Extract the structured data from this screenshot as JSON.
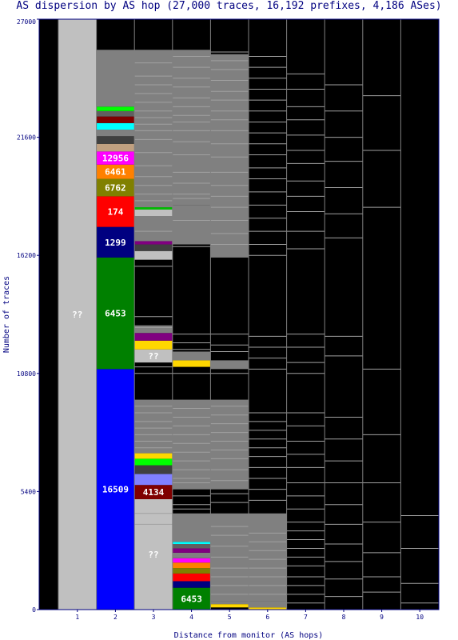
{
  "chart_data": {
    "type": "bar",
    "title": "AS dispersion by AS hop (27,000 traces, 16,192 prefixes, 4,186 ASes)",
    "xlabel": "Distance from monitor (AS hops)",
    "ylabel": "Number of traces",
    "ylim": [
      0,
      27000
    ],
    "yticks": [
      "0",
      "5400",
      "10800",
      "16200",
      "21600",
      "27000"
    ],
    "categories": [
      "1",
      "2",
      "3",
      "4",
      "5",
      "6",
      "7",
      "8",
      "9",
      "10"
    ],
    "colors": {
      "background": "#000000",
      "unknown": "#c0c0c0",
      "minor": "#808080",
      "axis": "#000080"
    },
    "columns": [
      {
        "hop": "1",
        "segments": [
          {
            "from": 0,
            "to": 27000,
            "color": "#c0c0c0",
            "label": "??"
          }
        ]
      },
      {
        "hop": "2",
        "segments": [
          {
            "from": 0,
            "to": 11000,
            "color": "#0000ff",
            "label": "16509"
          },
          {
            "from": 11000,
            "to": 16100,
            "color": "#008000",
            "label": "6453"
          },
          {
            "from": 16100,
            "to": 17500,
            "color": "#000080",
            "label": "1299"
          },
          {
            "from": 17500,
            "to": 18900,
            "color": "#ff0000",
            "label": "174"
          },
          {
            "from": 18900,
            "to": 19700,
            "color": "#808000",
            "label": "6762"
          },
          {
            "from": 19700,
            "to": 20350,
            "color": "#ff8000",
            "label": "6461"
          },
          {
            "from": 20350,
            "to": 20950,
            "color": "#ff00ff",
            "label": "12956"
          },
          {
            "from": 20950,
            "to": 21300,
            "color": "#c0a080",
            "label": ""
          },
          {
            "from": 21300,
            "to": 21650,
            "color": "#404040",
            "label": ""
          },
          {
            "from": 21650,
            "to": 21950,
            "color": "#808080",
            "label": ""
          },
          {
            "from": 21950,
            "to": 22250,
            "color": "#00ffff",
            "label": ""
          },
          {
            "from": 22250,
            "to": 22550,
            "color": "#800000",
            "label": ""
          },
          {
            "from": 22550,
            "to": 22800,
            "color": "#606060",
            "label": ""
          },
          {
            "from": 22800,
            "to": 23000,
            "color": "#00ff00",
            "label": ""
          },
          {
            "from": 23000,
            "to": 25600,
            "color": "#808080",
            "label": ""
          }
        ]
      },
      {
        "hop": "3",
        "segments": [
          {
            "from": 0,
            "to": 5050,
            "color": "#c0c0c0",
            "label": "??"
          },
          {
            "from": 5050,
            "to": 5700,
            "color": "#800000",
            "label": "4134"
          },
          {
            "from": 5700,
            "to": 6200,
            "color": "#8080ff",
            "label": ""
          },
          {
            "from": 6200,
            "to": 6600,
            "color": "#404040",
            "label": ""
          },
          {
            "from": 6600,
            "to": 6900,
            "color": "#00ff00",
            "label": ""
          },
          {
            "from": 6900,
            "to": 7150,
            "color": "#ffd700",
            "label": ""
          },
          {
            "from": 7150,
            "to": 9600,
            "color": "#808080",
            "label": ""
          },
          {
            "from": 11300,
            "to": 11900,
            "color": "#c0c0c0",
            "label": "??"
          },
          {
            "from": 11900,
            "to": 12300,
            "color": "#ffd700",
            "label": ""
          },
          {
            "from": 12300,
            "to": 12650,
            "color": "#800080",
            "label": ""
          },
          {
            "from": 12650,
            "to": 13000,
            "color": "#808080",
            "label": ""
          },
          {
            "from": 16000,
            "to": 16400,
            "color": "#c0c0c0",
            "label": ""
          },
          {
            "from": 16400,
            "to": 16700,
            "color": "#404040",
            "label": ""
          },
          {
            "from": 16700,
            "to": 16850,
            "color": "#800080",
            "label": ""
          },
          {
            "from": 16850,
            "to": 18000,
            "color": "#808080",
            "label": ""
          },
          {
            "from": 18000,
            "to": 18300,
            "color": "#c0c0c0",
            "label": ""
          },
          {
            "from": 18300,
            "to": 18400,
            "color": "#00c000",
            "label": ""
          },
          {
            "from": 18400,
            "to": 25600,
            "color": "#808080",
            "label": ""
          }
        ]
      },
      {
        "hop": "4",
        "segments": [
          {
            "from": 0,
            "to": 1000,
            "color": "#008000",
            "label": "6453"
          },
          {
            "from": 1000,
            "to": 1300,
            "color": "#000080",
            "label": ""
          },
          {
            "from": 1300,
            "to": 1650,
            "color": "#ff0000",
            "label": ""
          },
          {
            "from": 1650,
            "to": 1900,
            "color": "#808000",
            "label": ""
          },
          {
            "from": 1900,
            "to": 2150,
            "color": "#ff8000",
            "label": ""
          },
          {
            "from": 2150,
            "to": 2350,
            "color": "#ff00ff",
            "label": ""
          },
          {
            "from": 2350,
            "to": 2600,
            "color": "#808080",
            "label": ""
          },
          {
            "from": 2600,
            "to": 2800,
            "color": "#800080",
            "label": ""
          },
          {
            "from": 2800,
            "to": 3000,
            "color": "#606060",
            "label": ""
          },
          {
            "from": 3000,
            "to": 3100,
            "color": "#00ffff",
            "label": ""
          },
          {
            "from": 3100,
            "to": 4400,
            "color": "#808080",
            "label": ""
          },
          {
            "from": 5500,
            "to": 9600,
            "color": "#808080",
            "label": ""
          },
          {
            "from": 11100,
            "to": 11400,
            "color": "#ffd700",
            "label": ""
          },
          {
            "from": 11400,
            "to": 11800,
            "color": "#808080",
            "label": ""
          },
          {
            "from": 16700,
            "to": 18500,
            "color": "#808080",
            "label": ""
          },
          {
            "from": 18500,
            "to": 25600,
            "color": "#808080",
            "label": ""
          }
        ]
      },
      {
        "hop": "5",
        "segments": [
          {
            "from": 100,
            "to": 250,
            "color": "#ffd700",
            "label": ""
          },
          {
            "from": 250,
            "to": 400,
            "color": "#808080",
            "label": ""
          },
          {
            "from": 400,
            "to": 4400,
            "color": "#808080",
            "label": ""
          },
          {
            "from": 5500,
            "to": 9600,
            "color": "#808080",
            "label": ""
          },
          {
            "from": 11000,
            "to": 11400,
            "color": "#808080",
            "label": ""
          },
          {
            "from": 16100,
            "to": 25400,
            "color": "#808080",
            "label": ""
          }
        ]
      },
      {
        "hop": "6",
        "segments": [
          {
            "from": 0,
            "to": 100,
            "color": "#ffd700",
            "label": ""
          },
          {
            "from": 100,
            "to": 400,
            "color": "#808080",
            "label": ""
          },
          {
            "from": 400,
            "to": 4400,
            "color": "#808080",
            "label": ""
          }
        ]
      },
      {
        "hop": "7",
        "segments": []
      },
      {
        "hop": "8",
        "segments": []
      },
      {
        "hop": "9",
        "segments": []
      },
      {
        "hop": "10",
        "segments": []
      }
    ],
    "thin_lines": [
      {
        "hop": "3",
        "at": [
          25000,
          24400,
          24000,
          23600,
          23200,
          22800,
          22500,
          22200,
          21900,
          21500,
          20900,
          20300,
          19800,
          19400,
          19000,
          18700,
          17300,
          15700,
          13400,
          12900,
          11100,
          10800,
          9300,
          9000,
          8600,
          8300,
          8000,
          7700,
          7400,
          4400,
          3900
        ]
      },
      {
        "hop": "4",
        "at": [
          25300,
          24800,
          24300,
          23900,
          23400,
          23000,
          22600,
          22300,
          21900,
          21400,
          20800,
          20000,
          19500,
          19000,
          18800,
          17800,
          16600,
          12600,
          12200,
          11900,
          10800,
          9200,
          8800,
          8400,
          8000,
          7600,
          7200,
          6800,
          6400,
          6000,
          5800,
          5200,
          4800,
          4600
        ]
      },
      {
        "hop": "5",
        "at": [
          25500,
          25100,
          24700,
          24200,
          23700,
          23300,
          22800,
          22400,
          21900,
          21300,
          20700,
          20000,
          19400,
          18900,
          18400,
          17800,
          17200,
          16700,
          12600,
          12100,
          11800,
          10800,
          9300,
          8900,
          8500,
          8100,
          7700,
          7300,
          6900,
          6400,
          5900,
          5300,
          4900,
          3800,
          3400,
          2900,
          2400,
          1900,
          1500,
          1100,
          700
        ]
      },
      {
        "hop": "6",
        "at": [
          25300,
          24800,
          24300,
          23800,
          23300,
          22800,
          22300,
          21800,
          21300,
          20800,
          20200,
          19700,
          19100,
          18500,
          17900,
          17300,
          16700,
          16200,
          12500,
          12000,
          11500,
          11000,
          9000,
          8600,
          8200,
          7800,
          7400,
          7000,
          6500,
          6000,
          5500,
          5000,
          3500,
          3100,
          2700,
          2300,
          1900,
          1500,
          1100,
          700
        ]
      },
      {
        "hop": "7",
        "at": [
          24500,
          23800,
          23000,
          22400,
          21700,
          21000,
          20400,
          19600,
          18900,
          18200,
          17300,
          16500,
          12600,
          12000,
          11300,
          10800,
          9000,
          8400,
          7700,
          7100,
          6500,
          5800,
          5200,
          4600,
          4000,
          3600,
          3200,
          2800,
          2400,
          2000,
          1500,
          1100,
          700,
          300
        ]
      },
      {
        "hop": "8",
        "at": [
          24000,
          22800,
          21600,
          20500,
          19300,
          18100,
          17000,
          12500,
          11600,
          8800,
          7800,
          6800,
          5800,
          4800,
          3900,
          3000,
          2200,
          1400,
          600
        ]
      },
      {
        "hop": "9",
        "at": [
          23500,
          21000,
          18400,
          11000,
          8000,
          5800,
          4000,
          2600,
          1500,
          800
        ]
      },
      {
        "hop": "10",
        "at": [
          4300,
          2800,
          1200,
          300
        ]
      }
    ]
  }
}
